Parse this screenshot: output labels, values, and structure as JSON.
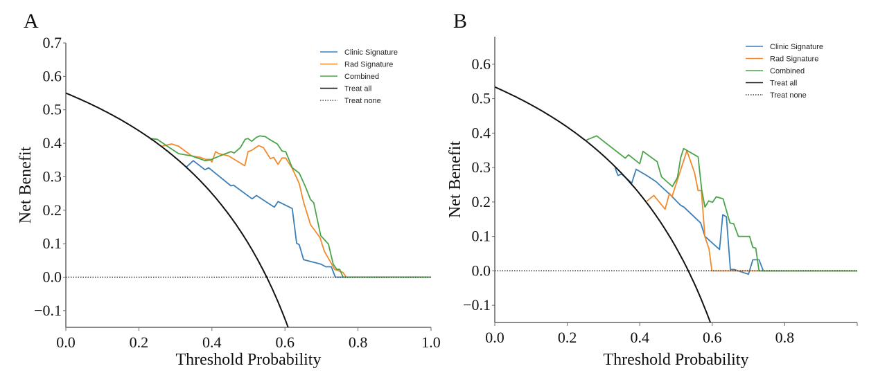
{
  "chart_data": [
    {
      "type": "line",
      "panel_label": "A",
      "title": "",
      "xlabel": "Threshold Probability",
      "ylabel": "Net Benefit",
      "xlim": [
        0.0,
        1.0
      ],
      "ylim": [
        -0.15,
        0.7
      ],
      "xticks": [
        0.0,
        0.2,
        0.4,
        0.6,
        0.8,
        1.0
      ],
      "xtick_labels": [
        "0.0",
        "0.2",
        "0.4",
        "0.6",
        "0.8",
        "1.0"
      ],
      "yticks": [
        -0.1,
        0.0,
        0.1,
        0.2,
        0.3,
        0.4,
        0.5,
        0.6,
        0.7
      ],
      "ytick_labels": [
        "−0.1",
        "0.0",
        "0.1",
        "0.2",
        "0.3",
        "0.4",
        "0.5",
        "0.6",
        "0.7"
      ],
      "grid": false,
      "legend_position": "top-right",
      "treat_all_prevalence": 0.55,
      "series": [
        {
          "name": "Clinic Signature",
          "color": "#3a7fb8",
          "style": "solid",
          "x": [
            0.33,
            0.349,
            0.381,
            0.391,
            0.452,
            0.459,
            0.51,
            0.522,
            0.571,
            0.581,
            0.62,
            0.632,
            0.639,
            0.651,
            0.698,
            0.712,
            0.727,
            0.738,
            1.0
          ],
          "y": [
            0.329,
            0.348,
            0.321,
            0.327,
            0.273,
            0.275,
            0.234,
            0.244,
            0.209,
            0.226,
            0.205,
            0.101,
            0.097,
            0.052,
            0.039,
            0.031,
            0.031,
            0.0,
            0.0
          ]
        },
        {
          "name": "Rad Signature",
          "color": "#f08a2c",
          "style": "solid",
          "x": [
            0.262,
            0.29,
            0.309,
            0.345,
            0.368,
            0.383,
            0.395,
            0.4,
            0.41,
            0.419,
            0.446,
            0.49,
            0.499,
            0.509,
            0.528,
            0.541,
            0.56,
            0.569,
            0.581,
            0.592,
            0.602,
            0.62,
            0.639,
            0.651,
            0.67,
            0.696,
            0.708,
            0.727,
            0.736,
            0.759,
            0.768,
            1.0
          ],
          "y": [
            0.391,
            0.398,
            0.391,
            0.362,
            0.358,
            0.352,
            0.352,
            0.344,
            0.375,
            0.369,
            0.362,
            0.333,
            0.375,
            0.379,
            0.393,
            0.387,
            0.354,
            0.358,
            0.337,
            0.356,
            0.356,
            0.325,
            0.28,
            0.224,
            0.157,
            0.118,
            0.077,
            0.041,
            0.023,
            0.014,
            0.0,
            0.0
          ]
        },
        {
          "name": "Combined",
          "color": "#4aa447",
          "style": "solid",
          "x": [
            0.233,
            0.25,
            0.281,
            0.309,
            0.345,
            0.381,
            0.395,
            0.421,
            0.452,
            0.461,
            0.478,
            0.491,
            0.499,
            0.509,
            0.522,
            0.531,
            0.546,
            0.56,
            0.579,
            0.592,
            0.602,
            0.62,
            0.639,
            0.655,
            0.67,
            0.679,
            0.698,
            0.719,
            0.732,
            0.742,
            0.75,
            0.759,
            1.0
          ],
          "y": [
            0.414,
            0.412,
            0.389,
            0.369,
            0.362,
            0.348,
            0.35,
            0.362,
            0.375,
            0.371,
            0.387,
            0.412,
            0.414,
            0.406,
            0.418,
            0.422,
            0.42,
            0.41,
            0.398,
            0.377,
            0.375,
            0.327,
            0.311,
            0.273,
            0.232,
            0.222,
            0.124,
            0.099,
            0.039,
            0.023,
            0.023,
            0.0,
            0.0
          ]
        },
        {
          "name": "Treat all",
          "color": "#111111",
          "style": "solid",
          "formula": "p - (1-p)*t/(1-t)"
        },
        {
          "name": "Treat none",
          "color": "#222222",
          "style": "dotted",
          "x": [
            0.0,
            1.0
          ],
          "y": [
            0.0,
            0.0
          ]
        }
      ]
    },
    {
      "type": "line",
      "panel_label": "B",
      "title": "",
      "xlabel": "Threshold Probability",
      "ylabel": "Net Benefit",
      "xlim": [
        0.0,
        1.0
      ],
      "ylim": [
        -0.15,
        0.68
      ],
      "xticks": [
        0.0,
        0.2,
        0.4,
        0.6,
        0.8,
        1.0
      ],
      "xtick_labels": [
        "0.0",
        "0.2",
        "0.4",
        "0.6",
        "0.8",
        ""
      ],
      "yticks": [
        -0.1,
        0.0,
        0.1,
        0.2,
        0.3,
        0.4,
        0.5,
        0.6
      ],
      "ytick_labels": [
        "−0.1",
        "0.0",
        "0.1",
        "0.2",
        "0.3",
        "0.4",
        "0.5",
        "0.6"
      ],
      "grid": false,
      "legend_position": "top-right",
      "treat_all_prevalence": 0.534,
      "series": [
        {
          "name": "Clinic Signature",
          "color": "#3a7fb8",
          "style": "solid",
          "x": [
            0.332,
            0.34,
            0.35,
            0.378,
            0.39,
            0.419,
            0.445,
            0.484,
            0.512,
            0.522,
            0.568,
            0.58,
            0.62,
            0.629,
            0.639,
            0.65,
            0.66,
            0.7,
            0.712,
            0.729,
            0.741,
            1.0
          ],
          "y": [
            0.299,
            0.277,
            0.281,
            0.255,
            0.295,
            0.277,
            0.259,
            0.221,
            0.191,
            0.185,
            0.139,
            0.1,
            0.062,
            0.163,
            0.157,
            0.004,
            0.004,
            -0.01,
            0.032,
            0.032,
            0.0,
            0.0
          ]
        },
        {
          "name": "Rad Signature",
          "color": "#f08a2c",
          "style": "solid",
          "x": [
            0.42,
            0.439,
            0.47,
            0.482,
            0.489,
            0.53,
            0.551,
            0.561,
            0.57,
            0.58,
            0.591,
            0.599,
            1.0
          ],
          "y": [
            0.203,
            0.219,
            0.179,
            0.225,
            0.215,
            0.349,
            0.285,
            0.233,
            0.233,
            0.098,
            0.064,
            0.0,
            0.0
          ]
        },
        {
          "name": "Combined",
          "color": "#4aa447",
          "style": "solid",
          "x": [
            0.253,
            0.281,
            0.36,
            0.369,
            0.4,
            0.409,
            0.448,
            0.46,
            0.49,
            0.504,
            0.513,
            0.521,
            0.561,
            0.571,
            0.58,
            0.59,
            0.601,
            0.611,
            0.63,
            0.649,
            0.659,
            0.672,
            0.703,
            0.712,
            0.72,
            0.729,
            1.0
          ],
          "y": [
            0.38,
            0.392,
            0.327,
            0.337,
            0.311,
            0.347,
            0.317,
            0.273,
            0.245,
            0.271,
            0.329,
            0.355,
            0.331,
            0.235,
            0.185,
            0.203,
            0.199,
            0.215,
            0.209,
            0.139,
            0.137,
            0.1,
            0.1,
            0.068,
            0.066,
            0.0,
            0.0
          ]
        },
        {
          "name": "Treat all",
          "color": "#111111",
          "style": "solid",
          "formula": "p - (1-p)*t/(1-t)"
        },
        {
          "name": "Treat none",
          "color": "#222222",
          "style": "dotted",
          "x": [
            0.0,
            1.0
          ],
          "y": [
            0.0,
            0.0
          ]
        }
      ]
    }
  ]
}
